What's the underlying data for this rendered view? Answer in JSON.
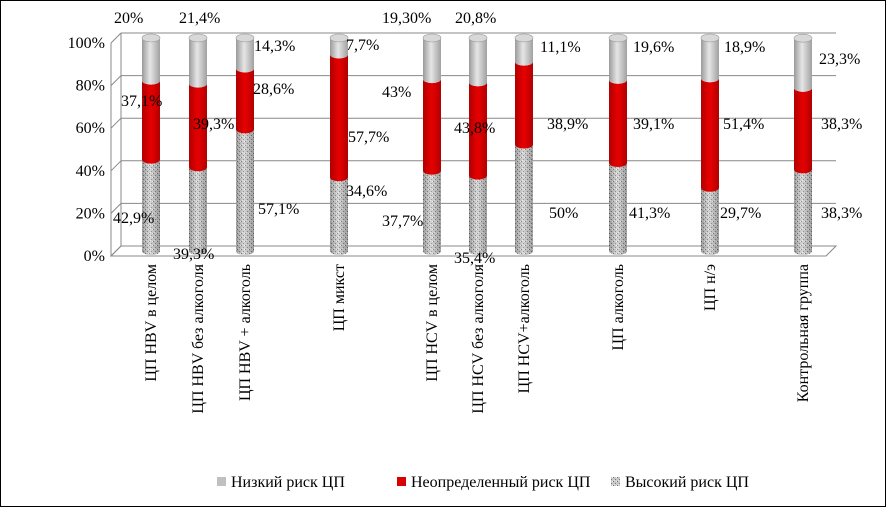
{
  "chart_data": {
    "type": "bar",
    "stacked": true,
    "percent_stacked": true,
    "three_d": true,
    "categories": [
      "ЦП HBV в целом",
      "ЦП HBV без алкоголя",
      "ЦП HBV + алкоголь",
      "ЦП микст",
      "ЦП HCV в целом",
      "ЦП HCV без алкоголя",
      "ЦП HCV+алкоголь",
      "ЦП алкоголь",
      "ЦП н/э",
      "Контрольная группа"
    ],
    "series": [
      {
        "name": "Высокий риск ЦП",
        "values": [
          42.9,
          39.3,
          57.1,
          34.6,
          37.7,
          35.4,
          50,
          41.3,
          29.7,
          38.3
        ],
        "labels": [
          "42,9%",
          "39,3%",
          "57,1%",
          "34,6%",
          "37,7%",
          "35,4%",
          "50%",
          "41,3%",
          "29,7%",
          "38,3%"
        ],
        "color": "#a8a8a8"
      },
      {
        "name": "Неопределенный риск ЦП",
        "values": [
          37.1,
          39.3,
          28.6,
          57.7,
          43,
          43.8,
          38.9,
          39.1,
          51.4,
          38.3
        ],
        "labels": [
          "37,1%",
          "39,3%",
          "28,6%",
          "57,7%",
          "43%",
          "43,8%",
          "38,9%",
          "39,1%",
          "51,4%",
          "38,3%"
        ],
        "color": "#d90000"
      },
      {
        "name": "Низкий риск ЦП",
        "values": [
          20,
          21.4,
          14.3,
          7.7,
          19.3,
          20.8,
          11.1,
          19.6,
          18.9,
          23.3
        ],
        "labels": [
          "20%",
          "21,4%",
          "14,3%",
          "7,7%",
          "19,30%",
          "20,8%",
          "11,1%",
          "19,6%",
          "18,9%",
          "23,3%"
        ],
        "color": "#bdbdbd"
      }
    ],
    "legend_order": [
      "Низкий риск ЦП",
      "Неопределенный риск ЦП",
      "Высокий риск ЦП"
    ],
    "y_ticks": [
      "0%",
      "20%",
      "40%",
      "60%",
      "80%",
      "100%"
    ],
    "ylim": [
      0,
      100
    ],
    "grid": true,
    "legend_position": "bottom"
  }
}
